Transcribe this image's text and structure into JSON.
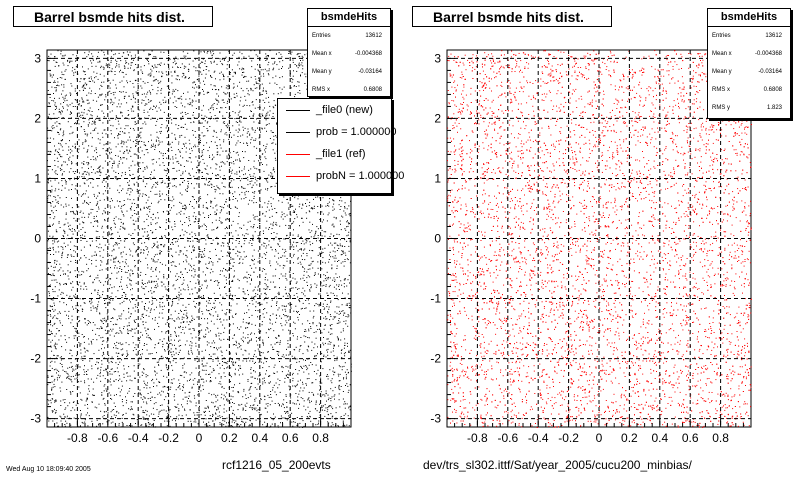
{
  "footer_text": "Wed Aug 10 18:09:40 2005",
  "chart_data": [
    {
      "type": "scatter",
      "title": "Barrel bsmde hits dist.",
      "xlabel": "rcf1216_05_200evts",
      "ylabel": "",
      "xlim": [
        -1.0,
        1.0
      ],
      "ylim": [
        -3.14,
        3.14
      ],
      "x_ticks": [
        "-0.8",
        "-0.6",
        "-0.4",
        "-0.2",
        "0",
        "0.2",
        "0.4",
        "0.6",
        "0.8"
      ],
      "y_ticks": [
        "-3",
        "-2",
        "-1",
        "0",
        "1",
        "2",
        "3"
      ],
      "grid": true,
      "marker_color": "#000000",
      "approx_points": 7000,
      "distribution": "uniform",
      "stats": {
        "name": "bsmdeHits",
        "rows": [
          {
            "key": "Entries",
            "value": "13612"
          },
          {
            "key": "Mean x",
            "value": "-0.004368"
          },
          {
            "key": "Mean y",
            "value": "-0.03164"
          },
          {
            "key": "RMS x",
            "value": "0.6808"
          }
        ]
      },
      "legend": {
        "placement": "top-right",
        "entries": [
          {
            "label": "_file0 (new)",
            "color": "#000000"
          },
          {
            "label": "prob = 1.000000",
            "color": "#000000"
          },
          {
            "label": "_file1 (ref)",
            "color": "#ff0000"
          },
          {
            "label": "probN = 1.000000",
            "color": "#ff0000"
          }
        ]
      }
    },
    {
      "type": "scatter",
      "title": "Barrel bsmde hits dist.",
      "xlabel": "dev/trs_sl302.ittf/Sat/year_2005/cucu200_minbias/",
      "ylabel": "",
      "xlim": [
        -1.0,
        1.0
      ],
      "ylim": [
        -3.14,
        3.14
      ],
      "x_ticks": [
        "-0.8",
        "-0.6",
        "-0.4",
        "-0.2",
        "0",
        "0.2",
        "0.4",
        "0.6",
        "0.8"
      ],
      "y_ticks": [
        "-3",
        "-2",
        "-1",
        "0",
        "1",
        "2",
        "3"
      ],
      "grid": true,
      "marker_color": "#ff0000",
      "approx_points": 7000,
      "distribution": "uniform",
      "stats": {
        "name": "bsmdeHits",
        "rows": [
          {
            "key": "Entries",
            "value": "13612"
          },
          {
            "key": "Mean x",
            "value": "-0.004368"
          },
          {
            "key": "Mean y",
            "value": "-0.03164"
          },
          {
            "key": "RMS x",
            "value": "0.6808"
          },
          {
            "key": "RMS y",
            "value": "1.823"
          }
        ]
      }
    }
  ]
}
